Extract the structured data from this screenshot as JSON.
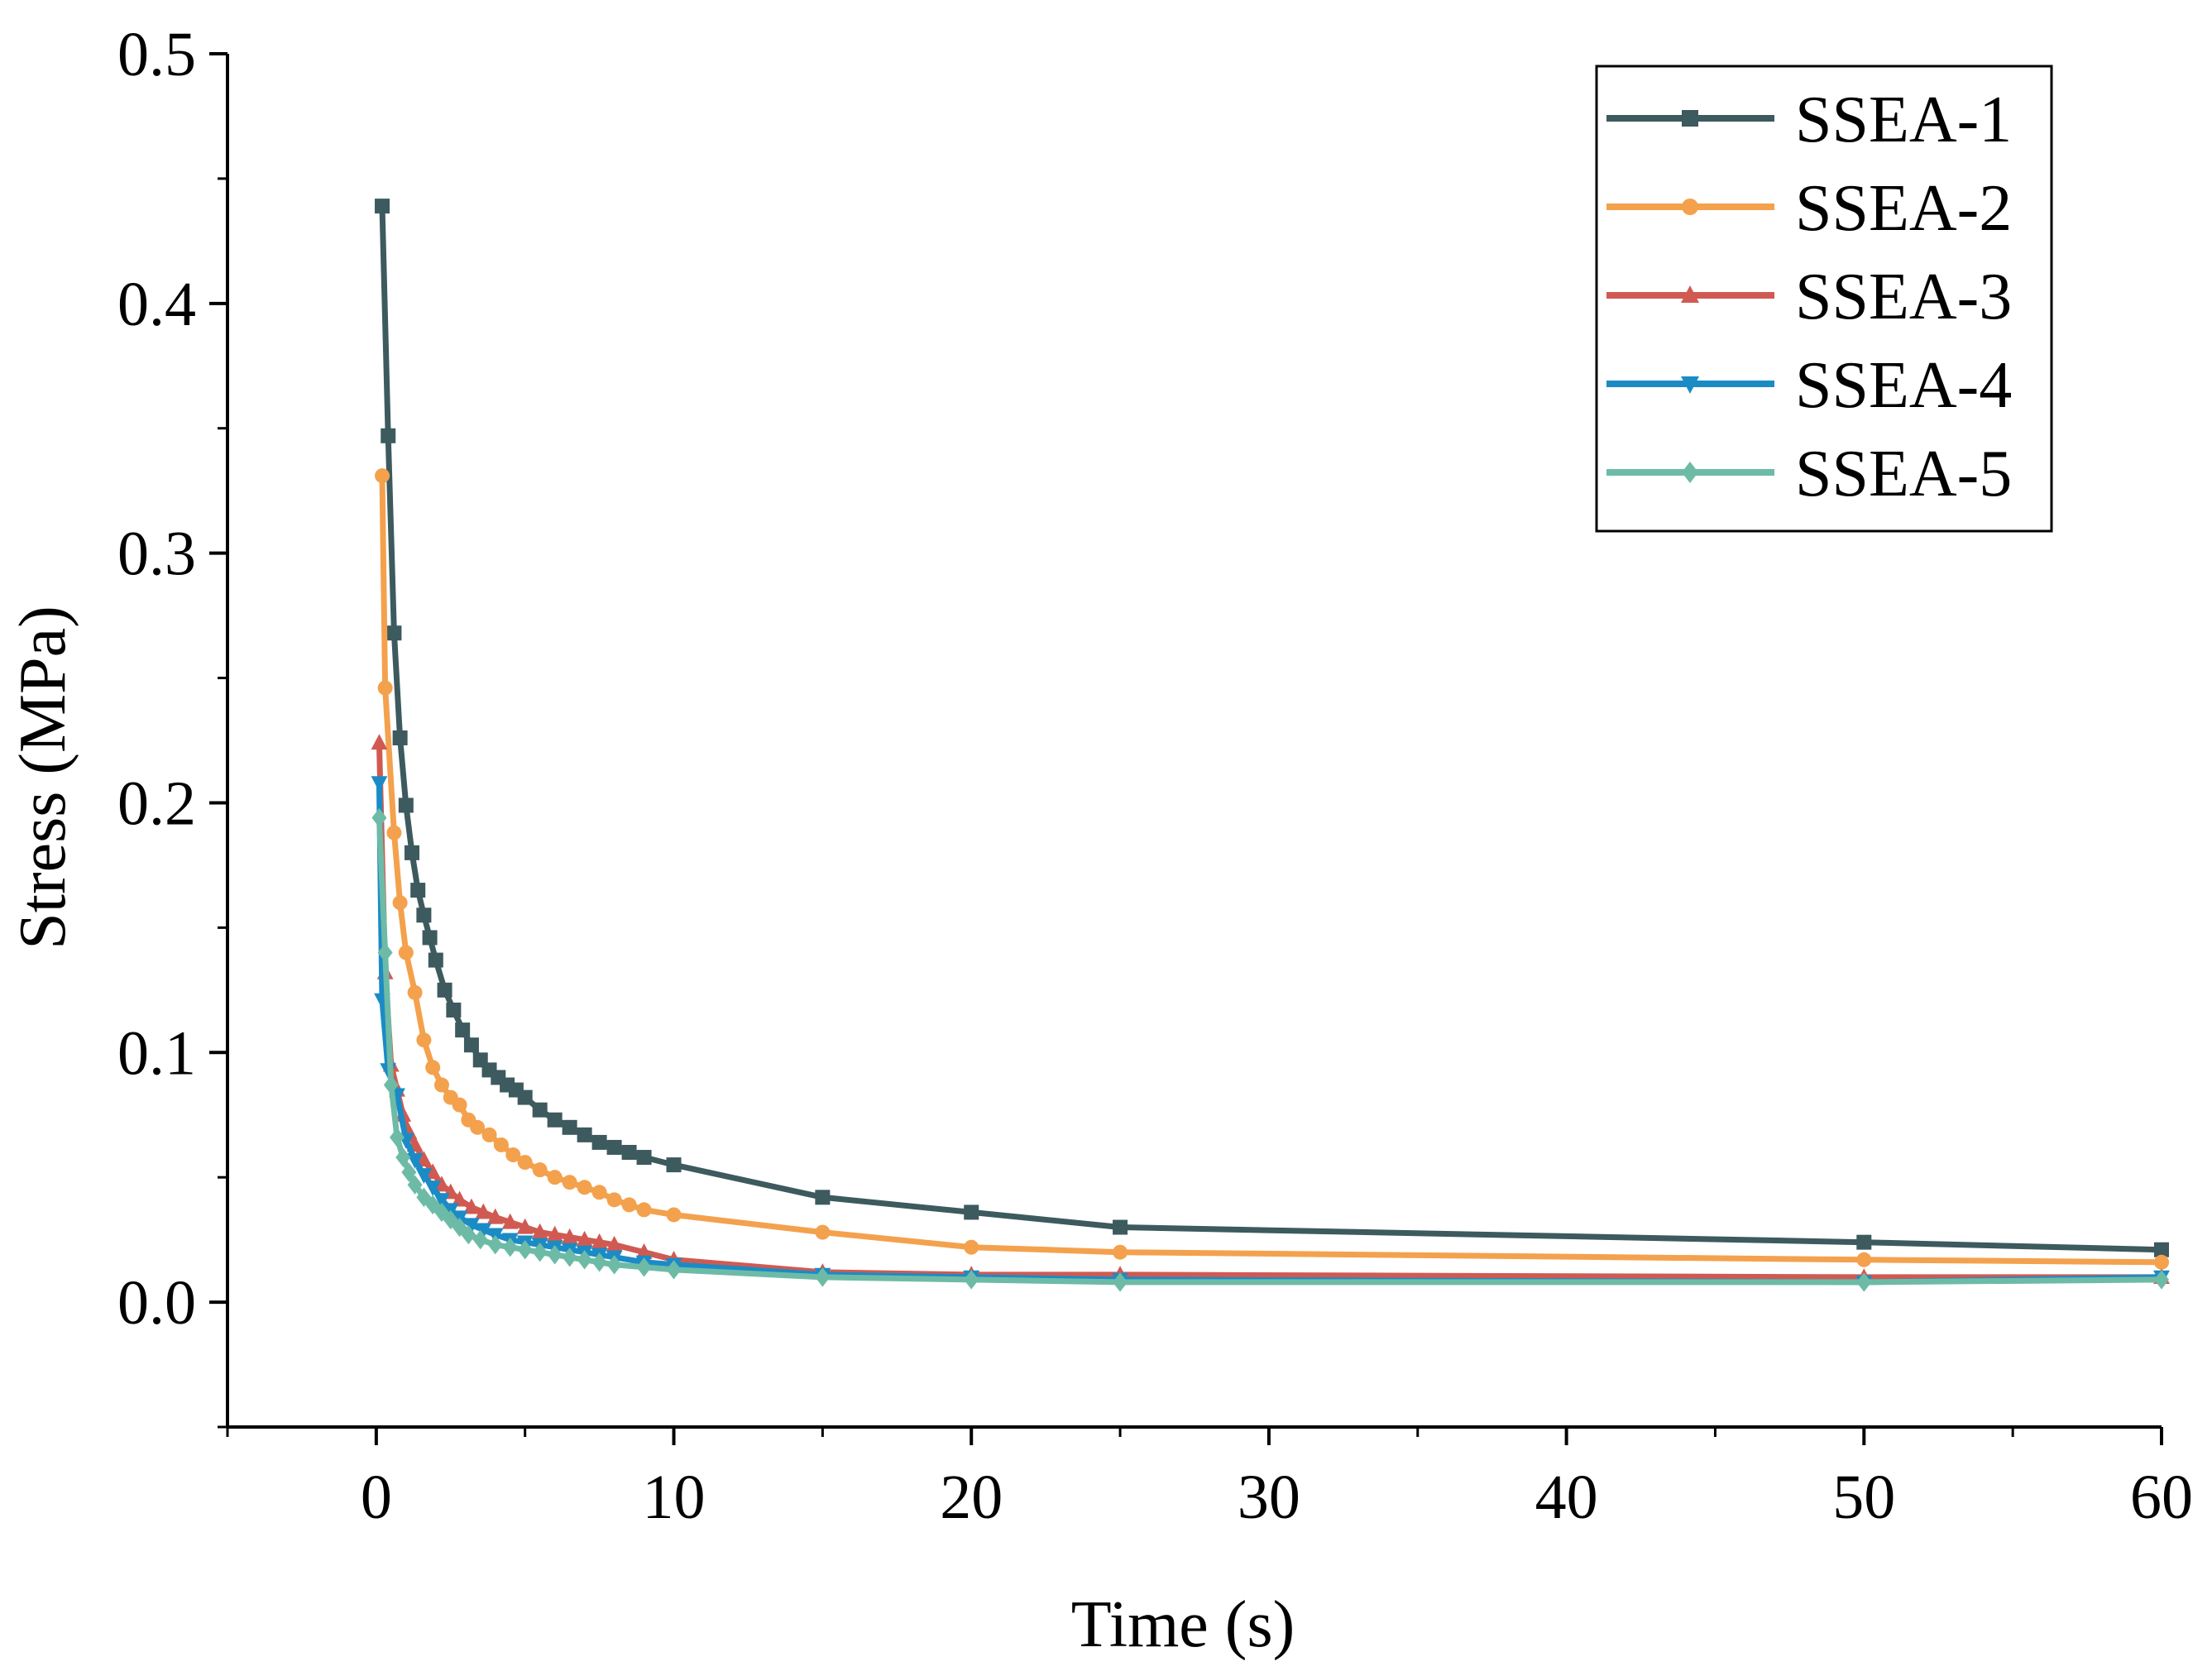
{
  "chart_data": {
    "type": "line",
    "title": "",
    "xlabel": "Time (s)",
    "ylabel": "Stress (MPa)",
    "xlim": [
      -5,
      60
    ],
    "ylim": [
      -0.05,
      0.5
    ],
    "xticks": [
      0,
      10,
      20,
      30,
      40,
      50,
      60
    ],
    "xtick_labels": [
      "0",
      "10",
      "20",
      "30",
      "40",
      "50",
      "60"
    ],
    "yticks": [
      0.0,
      0.1,
      0.2,
      0.3,
      0.4,
      0.5
    ],
    "ytick_labels": [
      "0.0",
      "0.1",
      "0.2",
      "0.3",
      "0.4",
      "0.5"
    ],
    "grid": false,
    "legend_position": "top-right",
    "series": [
      {
        "name": "SSEA-1",
        "color": "#3d5a5e",
        "marker": "square",
        "x": [
          0.2,
          0.4,
          0.6,
          0.8,
          1.0,
          1.2,
          1.4,
          1.6,
          1.8,
          2.0,
          2.3,
          2.6,
          2.9,
          3.2,
          3.5,
          3.8,
          4.1,
          4.4,
          4.7,
          5.0,
          5.5,
          6.0,
          6.5,
          7.0,
          7.5,
          8.0,
          8.5,
          9.0,
          10,
          15,
          20,
          25,
          50,
          60
        ],
        "y": [
          0.439,
          0.347,
          0.268,
          0.226,
          0.199,
          0.18,
          0.165,
          0.155,
          0.146,
          0.137,
          0.125,
          0.117,
          0.109,
          0.103,
          0.097,
          0.093,
          0.09,
          0.087,
          0.085,
          0.082,
          0.077,
          0.073,
          0.07,
          0.067,
          0.064,
          0.062,
          0.06,
          0.058,
          0.055,
          0.042,
          0.036,
          0.03,
          0.024,
          0.021
        ]
      },
      {
        "name": "SSEA-2",
        "color": "#f4a14d",
        "marker": "circle",
        "x": [
          0.2,
          0.3,
          0.6,
          0.8,
          1.0,
          1.3,
          1.6,
          1.9,
          2.2,
          2.5,
          2.8,
          3.1,
          3.4,
          3.8,
          4.2,
          4.6,
          5.0,
          5.5,
          6.0,
          6.5,
          7.0,
          7.5,
          8.0,
          8.5,
          9.0,
          10,
          15,
          20,
          25,
          50,
          60
        ],
        "y": [
          0.331,
          0.246,
          0.188,
          0.16,
          0.14,
          0.124,
          0.105,
          0.094,
          0.087,
          0.082,
          0.079,
          0.073,
          0.07,
          0.067,
          0.063,
          0.059,
          0.056,
          0.053,
          0.05,
          0.048,
          0.046,
          0.044,
          0.041,
          0.039,
          0.037,
          0.035,
          0.028,
          0.022,
          0.02,
          0.017,
          0.016
        ]
      },
      {
        "name": "SSEA-3",
        "color": "#d05a52",
        "marker": "triangle-up",
        "x": [
          0.1,
          0.3,
          0.5,
          0.7,
          0.9,
          1.1,
          1.3,
          1.6,
          1.9,
          2.2,
          2.5,
          2.8,
          3.2,
          3.6,
          4.0,
          4.5,
          5.0,
          5.5,
          6.0,
          6.5,
          7.0,
          7.5,
          8.0,
          9.0,
          10,
          15,
          20,
          25,
          50,
          60
        ],
        "y": [
          0.224,
          0.132,
          0.095,
          0.085,
          0.075,
          0.068,
          0.063,
          0.057,
          0.052,
          0.047,
          0.044,
          0.041,
          0.038,
          0.036,
          0.034,
          0.032,
          0.03,
          0.028,
          0.027,
          0.026,
          0.025,
          0.024,
          0.023,
          0.02,
          0.017,
          0.012,
          0.011,
          0.011,
          0.01,
          0.01
        ]
      },
      {
        "name": "SSEA-4",
        "color": "#1b8bc6",
        "marker": "triangle-down",
        "x": [
          0.1,
          0.2,
          0.4,
          0.7,
          1.0,
          1.3,
          1.6,
          1.9,
          2.2,
          2.5,
          2.8,
          3.2,
          3.6,
          4.0,
          4.5,
          5.0,
          5.5,
          6.0,
          6.5,
          7.0,
          7.5,
          8.0,
          9.0,
          10,
          15,
          20,
          25,
          50,
          60
        ],
        "y": [
          0.208,
          0.121,
          0.093,
          0.083,
          0.065,
          0.057,
          0.051,
          0.046,
          0.041,
          0.037,
          0.034,
          0.031,
          0.029,
          0.027,
          0.025,
          0.024,
          0.023,
          0.022,
          0.021,
          0.02,
          0.019,
          0.018,
          0.016,
          0.015,
          0.011,
          0.01,
          0.009,
          0.008,
          0.01
        ]
      },
      {
        "name": "SSEA-5",
        "color": "#6dbba6",
        "marker": "diamond",
        "x": [
          0.1,
          0.3,
          0.5,
          0.7,
          0.9,
          1.1,
          1.3,
          1.6,
          1.9,
          2.2,
          2.5,
          2.8,
          3.1,
          3.5,
          4.0,
          4.5,
          5.0,
          5.5,
          6.0,
          6.5,
          7.0,
          7.5,
          8.0,
          9.0,
          10,
          15,
          20,
          25,
          50,
          60
        ],
        "y": [
          0.194,
          0.14,
          0.087,
          0.066,
          0.058,
          0.052,
          0.047,
          0.042,
          0.039,
          0.036,
          0.033,
          0.03,
          0.027,
          0.025,
          0.023,
          0.022,
          0.021,
          0.02,
          0.019,
          0.018,
          0.017,
          0.016,
          0.015,
          0.014,
          0.013,
          0.01,
          0.009,
          0.008,
          0.008,
          0.009
        ]
      }
    ]
  }
}
